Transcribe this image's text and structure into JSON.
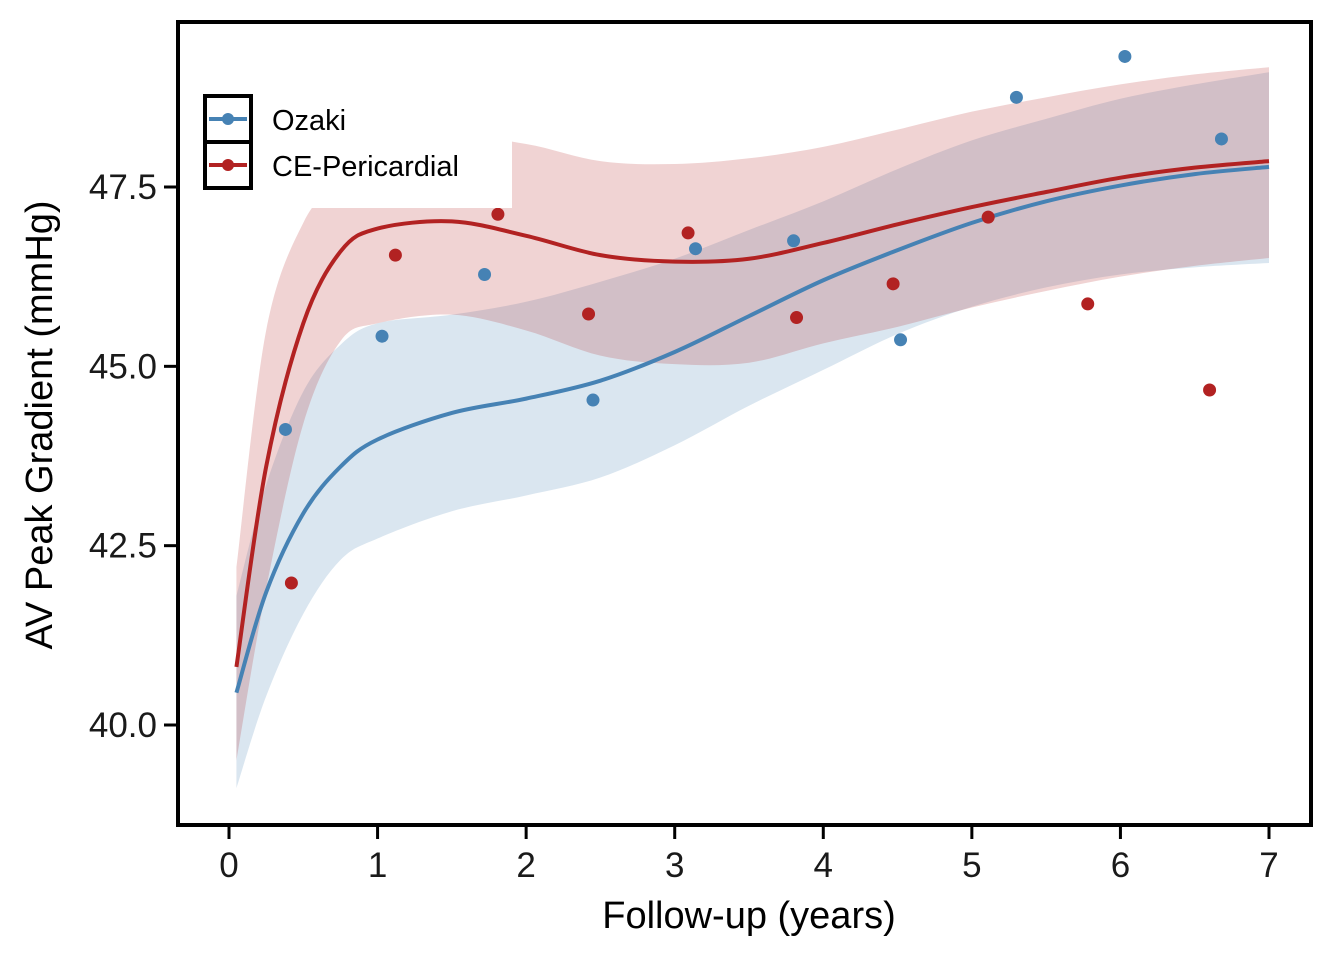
{
  "chart_data": {
    "type": "scatter",
    "title": "",
    "xlabel": "Follow-up (years)",
    "ylabel": "AV Peak Gradient (mmHg)",
    "xlim": [
      -0.35,
      7.2
    ],
    "ylim": [
      38.7,
      49.65
    ],
    "x_ticks": [
      0,
      1,
      2,
      3,
      4,
      5,
      6,
      7
    ],
    "x_tick_labels": [
      "0",
      "1",
      "2",
      "3",
      "4",
      "5",
      "6",
      "7"
    ],
    "y_ticks": [
      40.0,
      42.5,
      45.0,
      47.5
    ],
    "y_tick_labels": [
      "40.0",
      "42.5",
      "45.0",
      "47.5"
    ],
    "grid": false,
    "legend_position": "top-left",
    "smooth_x": [
      0.05,
      0.25,
      0.5,
      0.75,
      1,
      1.5,
      2,
      2.5,
      3,
      3.5,
      4,
      4.5,
      5,
      5.5,
      6,
      6.5,
      7
    ],
    "series": [
      {
        "name": "Ozaki",
        "color": "#4682B4",
        "band_color": "#4682B4",
        "points": [
          {
            "x": 0.38,
            "y": 44.12
          },
          {
            "x": 1.03,
            "y": 45.42
          },
          {
            "x": 1.72,
            "y": 46.28
          },
          {
            "x": 2.45,
            "y": 44.53
          },
          {
            "x": 3.14,
            "y": 46.64
          },
          {
            "x": 3.8,
            "y": 46.75
          },
          {
            "x": 4.52,
            "y": 45.37
          },
          {
            "x": 5.3,
            "y": 48.75
          },
          {
            "x": 6.03,
            "y": 49.32
          },
          {
            "x": 6.68,
            "y": 48.17
          }
        ],
        "smooth_y": [
          40.45,
          41.85,
          42.95,
          43.6,
          43.98,
          44.35,
          44.55,
          44.8,
          45.2,
          45.7,
          46.2,
          46.62,
          47.0,
          47.3,
          47.52,
          47.68,
          47.78
        ],
        "ci_upper": [
          41.8,
          43.35,
          44.65,
          45.3,
          45.6,
          45.72,
          45.9,
          46.18,
          46.5,
          46.9,
          47.3,
          47.75,
          48.15,
          48.45,
          48.73,
          48.93,
          49.1
        ],
        "ci_lower": [
          39.12,
          40.4,
          41.55,
          42.3,
          42.6,
          42.98,
          43.2,
          43.45,
          43.9,
          44.45,
          44.95,
          45.45,
          45.83,
          46.1,
          46.28,
          46.38,
          46.44
        ]
      },
      {
        "name": "CE-Pericardial",
        "color": "#B22222",
        "band_color": "#B22222",
        "points": [
          {
            "x": 0.42,
            "y": 41.98
          },
          {
            "x": 1.12,
            "y": 46.55
          },
          {
            "x": 1.81,
            "y": 47.12
          },
          {
            "x": 2.42,
            "y": 45.73
          },
          {
            "x": 3.09,
            "y": 46.86
          },
          {
            "x": 3.82,
            "y": 45.68
          },
          {
            "x": 4.47,
            "y": 46.15
          },
          {
            "x": 5.11,
            "y": 47.08
          },
          {
            "x": 5.78,
            "y": 45.87
          },
          {
            "x": 6.6,
            "y": 44.67
          }
        ],
        "smooth_y": [
          40.81,
          43.6,
          45.6,
          46.6,
          46.92,
          47.02,
          46.82,
          46.55,
          46.46,
          46.5,
          46.72,
          46.98,
          47.22,
          47.43,
          47.63,
          47.77,
          47.86
        ],
        "ci_upper": [
          42.2,
          45.5,
          47.0,
          47.6,
          47.9,
          48.2,
          48.1,
          47.86,
          47.82,
          47.9,
          48.06,
          48.3,
          48.55,
          48.75,
          48.93,
          49.07,
          49.17
        ],
        "ci_lower": [
          39.5,
          41.9,
          44.2,
          45.35,
          45.6,
          45.72,
          45.5,
          45.15,
          45.03,
          45.05,
          45.32,
          45.55,
          45.82,
          46.05,
          46.25,
          46.4,
          46.51
        ]
      }
    ]
  }
}
